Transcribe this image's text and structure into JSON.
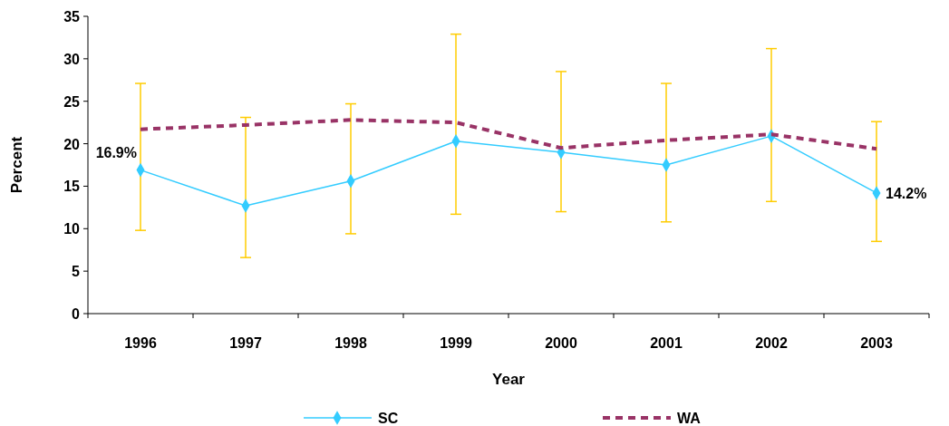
{
  "chart_data": {
    "type": "line",
    "xlabel": "Year",
    "ylabel": "Percent",
    "categories": [
      "1996",
      "1997",
      "1998",
      "1999",
      "2000",
      "2001",
      "2002",
      "2003"
    ],
    "ylim": [
      0,
      35
    ],
    "yticks": [
      0,
      5,
      10,
      15,
      20,
      25,
      30,
      35
    ],
    "grid": false,
    "legend": "bottom",
    "series": [
      {
        "name": "SC",
        "color": "#33ccff",
        "marker": "diamond",
        "line_style": "solid",
        "values": [
          16.9,
          12.7,
          15.6,
          20.3,
          19.0,
          17.5,
          20.9,
          14.2
        ],
        "errors": [
          [
            9.8,
            27.1
          ],
          [
            6.6,
            23.1
          ],
          [
            9.4,
            24.7
          ],
          [
            11.7,
            32.9
          ],
          [
            12.0,
            28.5
          ],
          [
            10.8,
            27.1
          ],
          [
            13.2,
            31.2
          ],
          [
            8.5,
            22.6
          ]
        ],
        "value_labels": [
          "16.9%",
          null,
          null,
          null,
          null,
          null,
          null,
          "14.2%"
        ]
      },
      {
        "name": "WA",
        "color": "#993366",
        "marker": "none",
        "line_style": "dashed",
        "values": [
          21.7,
          22.2,
          22.8,
          22.5,
          19.5,
          20.4,
          21.1,
          19.4
        ]
      }
    ]
  }
}
